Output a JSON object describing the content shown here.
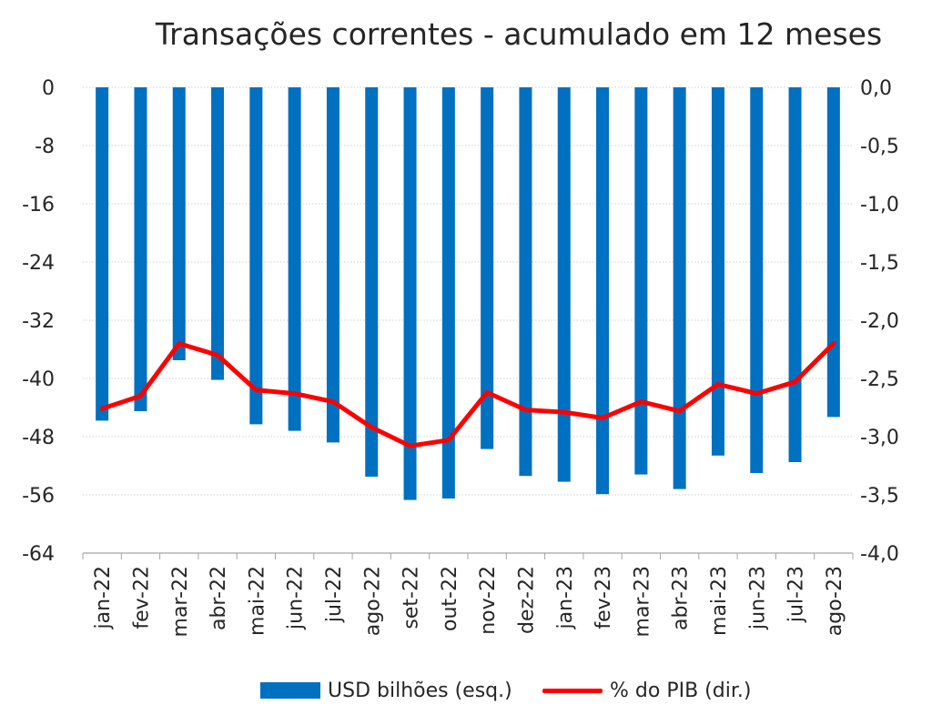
{
  "colors": {
    "bar": "#0070C0",
    "line": "#FF0000",
    "grid": "#D9D9D9",
    "axis": "#262626"
  },
  "chart_data": {
    "type": "bar",
    "title": "Transações correntes - acumulado em 12 meses",
    "categories": [
      "jan-22",
      "fev-22",
      "mar-22",
      "abr-22",
      "mai-22",
      "jun-22",
      "jul-22",
      "ago-22",
      "set-22",
      "out-22",
      "nov-22",
      "dez-22",
      "jan-23",
      "fev-23",
      "mar-23",
      "abr-23",
      "mai-23",
      "jun-23",
      "jul-23",
      "ago-23"
    ],
    "series": [
      {
        "name": "USD bilhões (esq.)",
        "type": "bar",
        "axis": "left",
        "values": [
          -45.8,
          -44.5,
          -37.5,
          -40.2,
          -46.3,
          -47.2,
          -48.8,
          -53.5,
          -56.7,
          -56.5,
          -49.7,
          -53.4,
          -54.2,
          -55.9,
          -53.2,
          -55.2,
          -50.6,
          -53.0,
          -51.5,
          -45.3
        ]
      },
      {
        "name": "% do PIB (dir.)",
        "type": "line",
        "axis": "right",
        "values": [
          -2.76,
          -2.65,
          -2.2,
          -2.3,
          -2.6,
          -2.63,
          -2.7,
          -2.92,
          -3.08,
          -3.03,
          -2.62,
          -2.77,
          -2.79,
          -2.84,
          -2.7,
          -2.78,
          -2.55,
          -2.63,
          -2.53,
          -2.2
        ]
      }
    ],
    "y_left": {
      "range": [
        -64,
        0
      ],
      "ticks": [
        "0",
        "-8",
        "-16",
        "-24",
        "-32",
        "-40",
        "-48",
        "-56",
        "-64"
      ]
    },
    "y_right": {
      "range": [
        -4.0,
        0.0
      ],
      "ticks": [
        "0,0",
        "-0,5",
        "-1,0",
        "-1,5",
        "-2,0",
        "-2,5",
        "-3,0",
        "-3,5",
        "-4,0"
      ]
    },
    "grid": true,
    "legend": "bottom"
  }
}
